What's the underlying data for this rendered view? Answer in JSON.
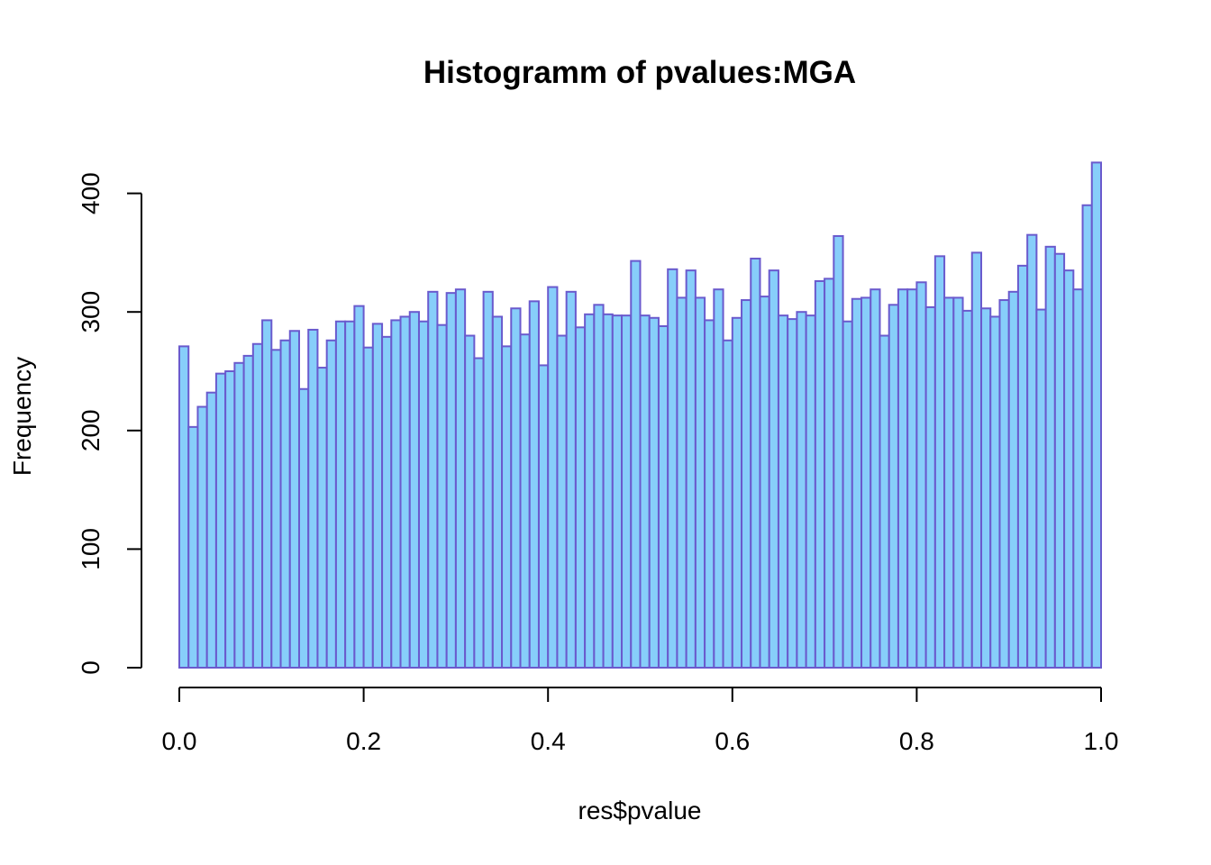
{
  "chart_data": {
    "type": "bar",
    "title": "Histogramm of pvalues:MGA",
    "xlabel": "res$pvalue",
    "ylabel": "Frequency",
    "xlim": [
      0,
      1
    ],
    "ylim": [
      0,
      425
    ],
    "x_ticks": [
      0.0,
      0.2,
      0.4,
      0.6,
      0.8,
      1.0
    ],
    "x_tick_labels": [
      "0.0",
      "0.2",
      "0.4",
      "0.6",
      "0.8",
      "1.0"
    ],
    "y_ticks": [
      0,
      100,
      200,
      300,
      400
    ],
    "y_tick_labels": [
      "0",
      "100",
      "200",
      "300",
      "400"
    ],
    "bin_width": 0.01,
    "values": [
      271,
      203,
      220,
      232,
      248,
      250,
      257,
      263,
      273,
      293,
      268,
      276,
      284,
      235,
      285,
      253,
      276,
      292,
      292,
      305,
      270,
      290,
      279,
      293,
      296,
      300,
      292,
      317,
      289,
      316,
      319,
      280,
      261,
      317,
      296,
      271,
      303,
      281,
      309,
      255,
      321,
      280,
      317,
      287,
      298,
      306,
      298,
      297,
      297,
      343,
      297,
      295,
      288,
      336,
      312,
      335,
      312,
      293,
      319,
      276,
      295,
      310,
      345,
      313,
      335,
      297,
      294,
      300,
      297,
      326,
      328,
      364,
      292,
      311,
      312,
      319,
      280,
      306,
      319,
      319,
      325,
      304,
      347,
      312,
      312,
      301,
      350,
      303,
      296,
      310,
      317,
      339,
      365,
      302,
      355,
      349,
      335,
      319,
      390,
      426
    ],
    "bar_fill": "#87cefa",
    "bar_stroke": "#6a5acd"
  }
}
